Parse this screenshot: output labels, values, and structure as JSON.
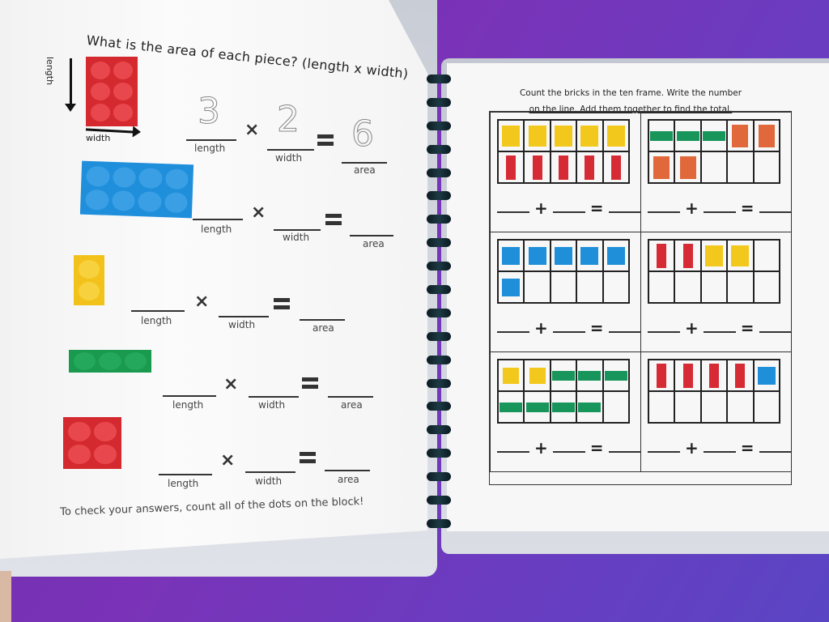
{
  "left_page": {
    "title": "What is the area of each piece? (length x width)",
    "example": {
      "length_axis_label": "length",
      "width_axis_label": "width",
      "length_value": "3",
      "width_value": "2",
      "area_value": "6",
      "brick_color": "#d42a2f"
    },
    "labels": {
      "length": "length",
      "width": "width",
      "area": "area",
      "times": "×"
    },
    "problems": [
      {
        "brick_color": "#1f8fdc",
        "rows": 2,
        "cols": 4
      },
      {
        "brick_color": "#f2c21a",
        "rows": 2,
        "cols": 1
      },
      {
        "brick_color": "#1a9a4f",
        "rows": 1,
        "cols": 3
      },
      {
        "brick_color": "#d42a2f",
        "rows": 2,
        "cols": 2
      }
    ],
    "footer": "To check your answers, count all of the dots on the block!"
  },
  "right_page": {
    "instructions_line1": "Count the bricks in the ten frame. Write the number",
    "instructions_line2": "on the line. Add them together to find the total.",
    "plus": "+",
    "frames": [
      {
        "cells": [
          "yellow",
          "yellow",
          "yellow",
          "yellow",
          "yellow",
          "red-tall",
          "red-tall",
          "red-tall",
          "red-tall",
          "red-tall"
        ]
      },
      {
        "cells": [
          "green-flat",
          "green-flat",
          "green-flat",
          "orange",
          "orange",
          "orange",
          "orange",
          "",
          "",
          ""
        ]
      },
      {
        "cells": [
          "blue",
          "blue",
          "blue",
          "blue",
          "blue",
          "blue",
          "",
          "",
          "",
          ""
        ]
      },
      {
        "cells": [
          "red-tall",
          "red-tall",
          "yellow",
          "yellow",
          "",
          "",
          "",
          "",
          "",
          ""
        ]
      },
      {
        "cells": [
          "yellow-small",
          "yellow-small",
          "green-flat",
          "green-flat",
          "green-flat",
          "green-flat",
          "green-flat",
          "green-flat",
          "green-flat",
          ""
        ]
      },
      {
        "cells": [
          "red-tall",
          "red-tall",
          "red-tall",
          "red-tall",
          "blue",
          "",
          "",
          "",
          "",
          ""
        ]
      }
    ]
  },
  "colors": {
    "background": "#6f30b2",
    "yellow": "#f2c81c",
    "red": "#d62b35",
    "green": "#18955a",
    "orange": "#e0683a",
    "blue": "#1e8fd8"
  }
}
